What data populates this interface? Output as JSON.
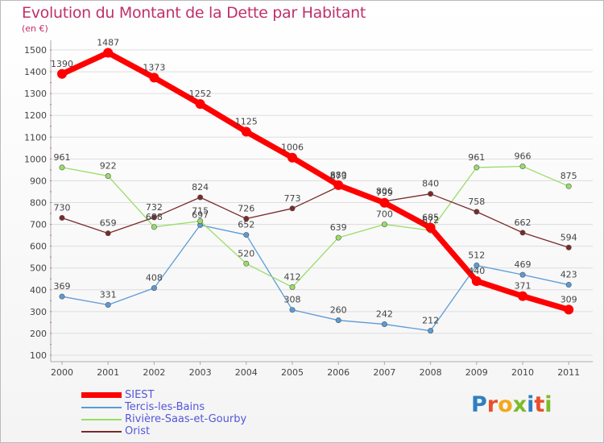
{
  "chart_data": {
    "type": "line",
    "title": "Evolution du Montant de la Dette par Habitant",
    "unit_label": "(en €)",
    "categories": [
      "2000",
      "2001",
      "2002",
      "2003",
      "2004",
      "2005",
      "2006",
      "2007",
      "2008",
      "2009",
      "2010",
      "2011"
    ],
    "y_ticks": [
      "100",
      "200",
      "300",
      "400",
      "500",
      "600",
      "700",
      "800",
      "900",
      "1000",
      "1100",
      "1200",
      "1300",
      "1400",
      "1500"
    ],
    "ylim": [
      100,
      1500
    ],
    "grid": "horizontal",
    "legend_position": "bottom-left",
    "series": [
      {
        "name": "SIEST",
        "color": "#ff0000",
        "values": [
          1390,
          1487,
          1373,
          1252,
          1125,
          1006,
          880,
          799,
          685,
          440,
          371,
          309
        ],
        "labels": [
          "1390",
          "1487",
          "1373",
          "1252",
          "1125",
          "1006",
          "880",
          "799",
          "685",
          "440",
          "371",
          "309"
        ]
      },
      {
        "name": "Tercis-les-Bains",
        "color": "#5b9bd5",
        "values": [
          369,
          331,
          408,
          697,
          652,
          308,
          260,
          242,
          212,
          512,
          469,
          423
        ],
        "labels": [
          "369",
          "331",
          "408",
          "697",
          "652",
          "308",
          "260",
          "242",
          "212",
          "512",
          "469",
          "423"
        ]
      },
      {
        "name": "Rivière-Saas-et-Gourby",
        "color": "#99dd66",
        "values": [
          961,
          922,
          688,
          715,
          520,
          412,
          639,
          700,
          672,
          961,
          966,
          875
        ],
        "labels": [
          "961",
          "922",
          "688",
          "715",
          "520",
          "412",
          "639",
          "700",
          "672",
          "961",
          "966",
          "875"
        ]
      },
      {
        "name": "Orist",
        "color": "#7a2a2a",
        "values": [
          730,
          659,
          732,
          824,
          726,
          773,
          873,
          806,
          840,
          758,
          662,
          594
        ],
        "labels": [
          "730",
          "659",
          "732",
          "824",
          "726",
          "773",
          "873",
          "806",
          "840",
          "758",
          "662",
          "594"
        ]
      }
    ]
  },
  "logo": {
    "letters": [
      "P",
      "r",
      "o",
      "x",
      "i",
      "t",
      "i"
    ]
  }
}
